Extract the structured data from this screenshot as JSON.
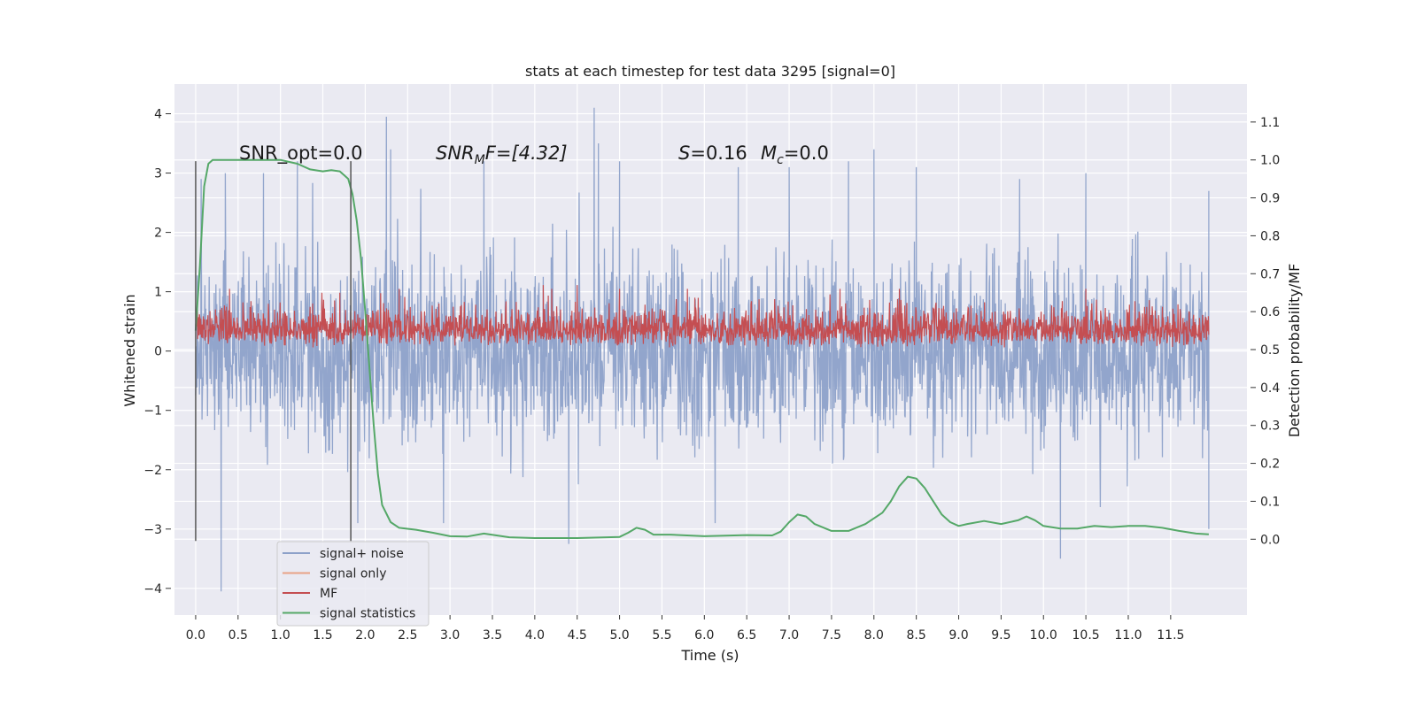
{
  "chart_data": {
    "type": "line",
    "title": "stats at each timestep for test data 3295 [signal=0]",
    "xlabel": "Time (s)",
    "ylabel_left": "Whitened strain",
    "ylabel_right": "Detection probability/MF",
    "xlim": [
      -0.25,
      12.4
    ],
    "ylim_left": [
      -4.45,
      4.5
    ],
    "ylim_right": [
      -0.2,
      1.2
    ],
    "grid": true,
    "x_ticks": [
      "0.0",
      "0.5",
      "1.0",
      "1.5",
      "2.0",
      "2.5",
      "3.0",
      "3.5",
      "4.0",
      "4.5",
      "5.0",
      "5.5",
      "6.0",
      "6.5",
      "7.0",
      "7.5",
      "8.0",
      "8.5",
      "9.0",
      "9.5",
      "10.0",
      "10.5",
      "11.0",
      "11.5"
    ],
    "y_ticks_left": [
      "4",
      "3",
      "2",
      "1",
      "0",
      "−1",
      "−2",
      "−3",
      "−4"
    ],
    "y_ticks_right": [
      "1.1",
      "1.0",
      "0.9",
      "0.8",
      "0.7",
      "0.6",
      "0.5",
      "0.4",
      "0.3",
      "0.2",
      "0.1",
      "0.0"
    ],
    "annotations": {
      "snr_opt": "SNR_opt=0.0",
      "snr_mf_base": "SNR",
      "snr_mf_sub1": "M",
      "snr_mf_rest": "F=[4.32]",
      "s_label": "S",
      "s_value": "=0.16",
      "mc_base": "M",
      "mc_sub": "c",
      "mc_value": "=0.0"
    },
    "vertical_markers_x": [
      0.0,
      1.83
    ],
    "legend_position": "lower-left",
    "series": [
      {
        "name": "signal+ noise",
        "color": "#8da1c9",
        "axis": "left",
        "x_range": [
          0.0,
          11.95
        ],
        "typical_range": [
          -1.3,
          1.3
        ],
        "spikes": [
          [
            0.3,
            -4.05
          ],
          [
            0.35,
            3.0
          ],
          [
            0.8,
            3.0
          ],
          [
            1.2,
            3.2
          ],
          [
            2.25,
            3.95
          ],
          [
            2.3,
            3.4
          ],
          [
            3.4,
            3.2
          ],
          [
            4.4,
            -3.25
          ],
          [
            4.7,
            4.1
          ],
          [
            4.75,
            3.5
          ],
          [
            5.0,
            3.2
          ],
          [
            6.4,
            3.1
          ],
          [
            7.0,
            3.1
          ],
          [
            7.7,
            3.2
          ],
          [
            8.0,
            3.4
          ],
          [
            8.5,
            3.1
          ],
          [
            10.2,
            -3.5
          ],
          [
            10.5,
            3.0
          ],
          [
            11.95,
            2.7
          ],
          [
            11.95,
            -3.0
          ]
        ]
      },
      {
        "name": "signal only",
        "color": "#e8a385",
        "axis": "left",
        "values": []
      },
      {
        "name": "MF",
        "color": "#c44e52",
        "axis": "right",
        "x_range": [
          0.0,
          11.95
        ],
        "baseline": 0.5,
        "typical_range": [
          0.5,
          0.64
        ],
        "spikes": [
          [
            0.4,
            0.66
          ],
          [
            1.7,
            0.65
          ],
          [
            2.4,
            0.66
          ],
          [
            4.1,
            0.67
          ],
          [
            4.2,
            0.66
          ],
          [
            4.5,
            0.67
          ],
          [
            5.0,
            0.66
          ],
          [
            5.8,
            0.66
          ],
          [
            7.6,
            0.66
          ],
          [
            8.3,
            0.66
          ],
          [
            10.5,
            0.66
          ]
        ]
      },
      {
        "name": "signal statistics",
        "color": "#55a868",
        "axis": "right",
        "x": [
          0.0,
          0.05,
          0.1,
          0.15,
          0.2,
          0.3,
          0.5,
          0.8,
          1.0,
          1.1,
          1.2,
          1.35,
          1.5,
          1.6,
          1.7,
          1.75,
          1.8,
          1.85,
          1.9,
          1.95,
          2.0,
          2.05,
          2.1,
          2.15,
          2.2,
          2.3,
          2.4,
          2.6,
          2.8,
          3.0,
          3.2,
          3.4,
          3.7,
          4.0,
          4.5,
          5.0,
          5.1,
          5.2,
          5.3,
          5.4,
          5.6,
          6.0,
          6.5,
          6.8,
          6.9,
          7.0,
          7.1,
          7.2,
          7.3,
          7.5,
          7.7,
          7.9,
          8.1,
          8.2,
          8.3,
          8.4,
          8.5,
          8.6,
          8.7,
          8.8,
          8.9,
          9.0,
          9.1,
          9.3,
          9.5,
          9.7,
          9.8,
          9.9,
          10.0,
          10.2,
          10.4,
          10.6,
          10.8,
          11.0,
          11.2,
          11.4,
          11.6,
          11.8,
          11.95
        ],
        "values": [
          0.55,
          0.72,
          0.93,
          0.99,
          1.0,
          1.0,
          1.0,
          1.0,
          1.0,
          0.995,
          0.99,
          0.975,
          0.97,
          0.973,
          0.97,
          0.96,
          0.95,
          0.91,
          0.84,
          0.74,
          0.6,
          0.45,
          0.3,
          0.17,
          0.09,
          0.045,
          0.03,
          0.025,
          0.017,
          0.008,
          0.007,
          0.015,
          0.005,
          0.003,
          0.003,
          0.006,
          0.017,
          0.03,
          0.025,
          0.012,
          0.012,
          0.008,
          0.011,
          0.01,
          0.02,
          0.045,
          0.065,
          0.06,
          0.04,
          0.022,
          0.022,
          0.04,
          0.07,
          0.1,
          0.14,
          0.165,
          0.16,
          0.135,
          0.1,
          0.065,
          0.045,
          0.035,
          0.04,
          0.048,
          0.04,
          0.05,
          0.06,
          0.05,
          0.035,
          0.028,
          0.028,
          0.035,
          0.032,
          0.035,
          0.035,
          0.03,
          0.022,
          0.015,
          0.013
        ]
      }
    ]
  }
}
